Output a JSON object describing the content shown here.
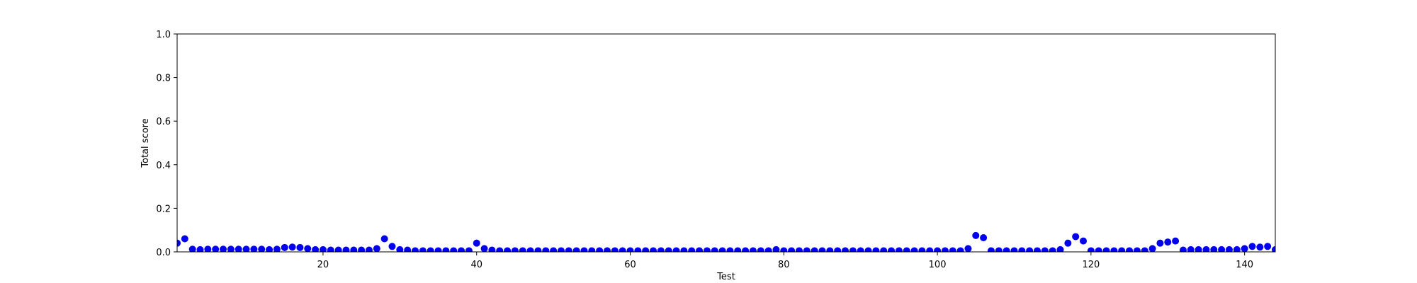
{
  "chart_data": {
    "type": "scatter",
    "xlabel": "Test",
    "ylabel": "Total score",
    "x": [
      1,
      2,
      3,
      4,
      5,
      6,
      7,
      8,
      9,
      10,
      11,
      12,
      13,
      14,
      15,
      16,
      17,
      18,
      19,
      20,
      21,
      22,
      23,
      24,
      25,
      26,
      27,
      28,
      29,
      30,
      31,
      32,
      33,
      34,
      35,
      36,
      37,
      38,
      39,
      40,
      41,
      42,
      43,
      44,
      45,
      46,
      47,
      48,
      49,
      50,
      51,
      52,
      53,
      54,
      55,
      56,
      57,
      58,
      59,
      60,
      61,
      62,
      63,
      64,
      65,
      66,
      67,
      68,
      69,
      70,
      71,
      72,
      73,
      74,
      75,
      76,
      77,
      78,
      79,
      80,
      81,
      82,
      83,
      84,
      85,
      86,
      87,
      88,
      89,
      90,
      91,
      92,
      93,
      94,
      95,
      96,
      97,
      98,
      99,
      100,
      101,
      102,
      103,
      104,
      105,
      106,
      107,
      108,
      109,
      110,
      111,
      112,
      113,
      114,
      115,
      116,
      117,
      118,
      119,
      120,
      121,
      122,
      123,
      124,
      125,
      126,
      127,
      128,
      129,
      130,
      131,
      132,
      133,
      134,
      135,
      136,
      137,
      138,
      139,
      140,
      141,
      142,
      143,
      144
    ],
    "values": [
      0.04,
      0.06,
      0.012,
      0.01,
      0.012,
      0.012,
      0.012,
      0.012,
      0.012,
      0.012,
      0.012,
      0.012,
      0.01,
      0.012,
      0.02,
      0.022,
      0.02,
      0.015,
      0.01,
      0.01,
      0.008,
      0.008,
      0.008,
      0.008,
      0.008,
      0.008,
      0.015,
      0.06,
      0.025,
      0.01,
      0.008,
      0.005,
      0.005,
      0.005,
      0.005,
      0.005,
      0.005,
      0.005,
      0.005,
      0.04,
      0.015,
      0.008,
      0.005,
      0.005,
      0.005,
      0.005,
      0.005,
      0.005,
      0.005,
      0.005,
      0.005,
      0.005,
      0.005,
      0.005,
      0.005,
      0.005,
      0.005,
      0.005,
      0.005,
      0.005,
      0.005,
      0.005,
      0.005,
      0.005,
      0.005,
      0.005,
      0.005,
      0.005,
      0.005,
      0.005,
      0.005,
      0.005,
      0.005,
      0.005,
      0.005,
      0.005,
      0.005,
      0.005,
      0.01,
      0.005,
      0.005,
      0.005,
      0.005,
      0.005,
      0.005,
      0.005,
      0.005,
      0.005,
      0.005,
      0.005,
      0.005,
      0.005,
      0.005,
      0.005,
      0.005,
      0.005,
      0.005,
      0.005,
      0.005,
      0.005,
      0.005,
      0.005,
      0.005,
      0.015,
      0.075,
      0.065,
      0.005,
      0.005,
      0.005,
      0.005,
      0.005,
      0.005,
      0.005,
      0.005,
      0.005,
      0.01,
      0.04,
      0.07,
      0.05,
      0.005,
      0.005,
      0.005,
      0.005,
      0.005,
      0.005,
      0.005,
      0.005,
      0.015,
      0.04,
      0.045,
      0.05,
      0.008,
      0.01,
      0.01,
      0.01,
      0.01,
      0.01,
      0.01,
      0.01,
      0.015,
      0.025,
      0.022,
      0.025,
      0.01
    ],
    "color": "#0000ee",
    "xlim": [
      1,
      144
    ],
    "xticks": [
      20,
      40,
      60,
      80,
      100,
      120,
      140
    ],
    "ylim": [
      0,
      1
    ],
    "yticks": [
      {
        "value": 0,
        "label": "0.0"
      },
      0.2,
      0.4,
      0.6,
      0.8,
      {
        "value": 1,
        "label": "1.0"
      }
    ],
    "grid": false
  }
}
